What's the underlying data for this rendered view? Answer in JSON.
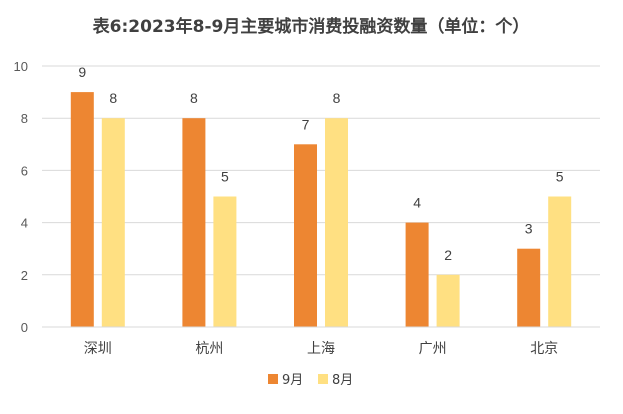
{
  "chart_data": {
    "type": "bar",
    "title": "表6:2023年8-9月主要城市消费投融资数量（单位：个）",
    "categories": [
      "深圳",
      "杭州",
      "上海",
      "广州",
      "北京"
    ],
    "series": [
      {
        "name": "9月",
        "values": [
          9,
          8,
          7,
          4,
          3
        ],
        "color": "#ED8632"
      },
      {
        "name": "8月",
        "values": [
          8,
          5,
          8,
          2,
          5
        ],
        "color": "#FFE082"
      }
    ],
    "y_ticks": [
      "0",
      "2",
      "4",
      "6",
      "8",
      "10"
    ],
    "ylim": [
      0,
      10
    ],
    "grid": true,
    "legend": "bottom",
    "data_labels": true
  }
}
